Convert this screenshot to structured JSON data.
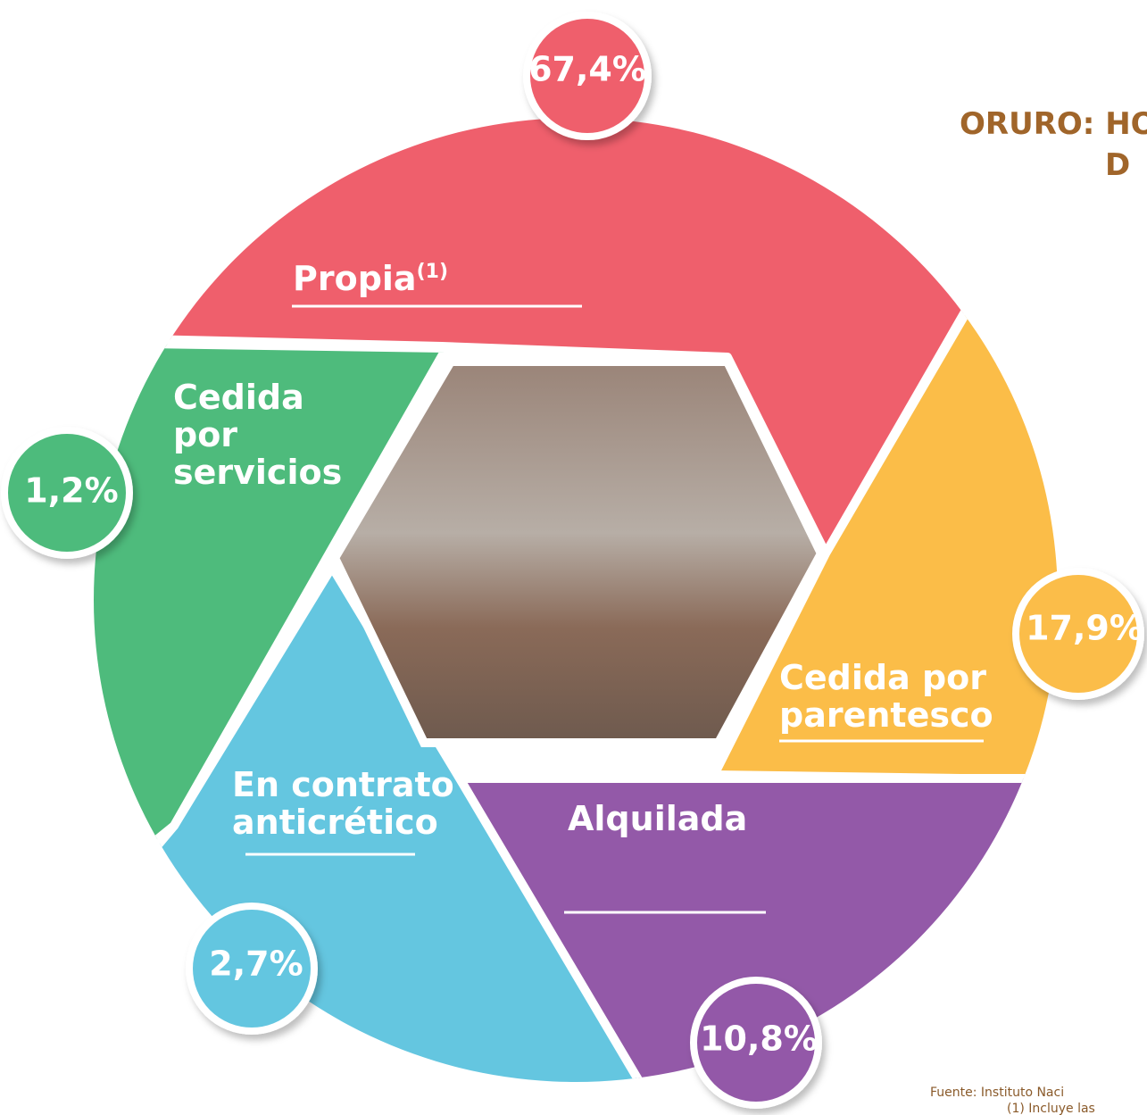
{
  "title": {
    "line1": "ORURO: HO",
    "line2": "D"
  },
  "segments": [
    {
      "label": "Propia",
      "note": "(1)",
      "percent": "67,4%"
    },
    {
      "label_lines": [
        "Cedida",
        "por",
        "servicios"
      ],
      "percent": "1,2%"
    },
    {
      "label_lines": [
        "Cedida por",
        "parentesco"
      ],
      "percent": "17,9%"
    },
    {
      "label_lines": [
        "En contrato",
        "anticrético"
      ],
      "percent": "2,7%"
    },
    {
      "label": "Alquilada",
      "percent": "10,8%"
    }
  ],
  "footer": {
    "source": "Fuente: Instituto Naci",
    "note": "(1) Incluye las"
  }
}
